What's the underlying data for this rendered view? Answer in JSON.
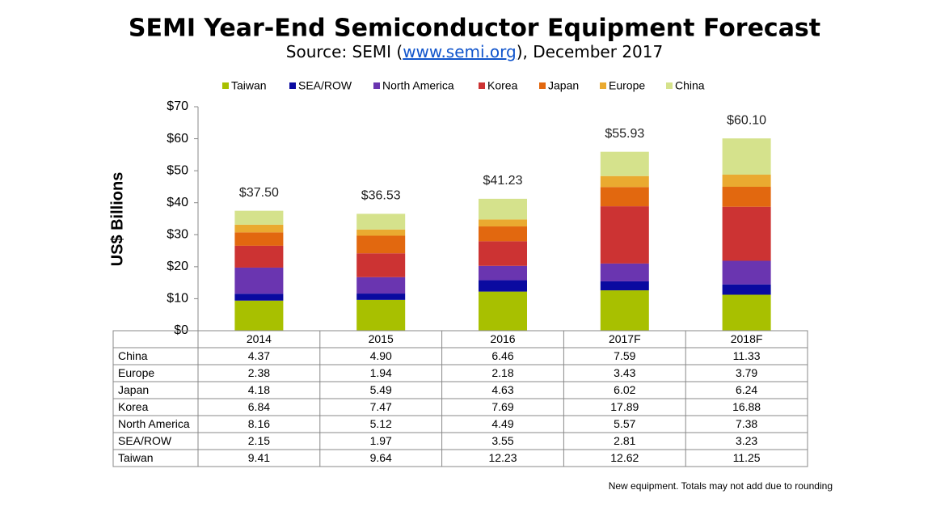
{
  "chart_data": {
    "type": "stacked_bar",
    "title": "SEMI Year-End Semiconductor Equipment Forecast",
    "subtitle": [
      "Source: SEMI (",
      "www.semi.org",
      "), December 2017"
    ],
    "y_label": "US$ Billions",
    "footnote": "New equipment. Totals may not add due to rounding",
    "categories": [
      "2014",
      "2015",
      "2016",
      "2017F",
      "2018F"
    ],
    "ylim": [
      0,
      70
    ],
    "yticks": [
      {
        "value": 0,
        "label": "$0"
      },
      {
        "value": 10,
        "label": "$10"
      },
      {
        "value": 20,
        "label": "$20"
      },
      {
        "value": 30,
        "label": "$30"
      },
      {
        "value": 40,
        "label": "$40"
      },
      {
        "value": 50,
        "label": "$50"
      },
      {
        "value": 60,
        "label": "$60"
      },
      {
        "value": 70,
        "label": "$70"
      }
    ],
    "series": [
      {
        "name": "Taiwan",
        "color": "#a8c000",
        "values": [
          9.41,
          9.64,
          12.23,
          12.62,
          11.25
        ],
        "value_labels": [
          "9.41",
          "9.64",
          "12.23",
          "12.62",
          "11.25"
        ]
      },
      {
        "name": "SEA/ROW",
        "color": "#0a0aa0",
        "values": [
          2.15,
          1.97,
          3.55,
          2.81,
          3.23
        ],
        "value_labels": [
          "2.15",
          "1.97",
          "3.55",
          "2.81",
          "3.23"
        ]
      },
      {
        "name": "North America",
        "color": "#6a35b0",
        "values": [
          8.16,
          5.12,
          4.49,
          5.57,
          7.38
        ],
        "value_labels": [
          "8.16",
          "5.12",
          "4.49",
          "5.57",
          "7.38"
        ]
      },
      {
        "name": "Korea",
        "color": "#cc3333",
        "values": [
          6.84,
          7.47,
          7.69,
          17.89,
          16.88
        ],
        "value_labels": [
          "6.84",
          "7.47",
          "7.69",
          "17.89",
          "16.88"
        ]
      },
      {
        "name": "Japan",
        "color": "#e2680f",
        "values": [
          4.18,
          5.49,
          4.63,
          6.02,
          6.24
        ],
        "value_labels": [
          "4.18",
          "5.49",
          "4.63",
          "6.02",
          "6.24"
        ]
      },
      {
        "name": "Europe",
        "color": "#eaaa30",
        "values": [
          2.38,
          1.94,
          2.18,
          3.43,
          3.79
        ],
        "value_labels": [
          "2.38",
          "1.94",
          "2.18",
          "3.43",
          "3.79"
        ]
      },
      {
        "name": "China",
        "color": "#d5e28c",
        "values": [
          4.37,
          4.9,
          6.46,
          7.59,
          11.33
        ],
        "value_labels": [
          "4.37",
          "4.90",
          "6.46",
          "7.59",
          "11.33"
        ]
      }
    ],
    "totals": {
      "values": [
        37.5,
        36.53,
        41.23,
        55.93,
        60.1
      ],
      "value_labels": [
        "$37.50",
        "$36.53",
        "$41.23",
        "$55.93",
        "$60.10"
      ]
    }
  }
}
